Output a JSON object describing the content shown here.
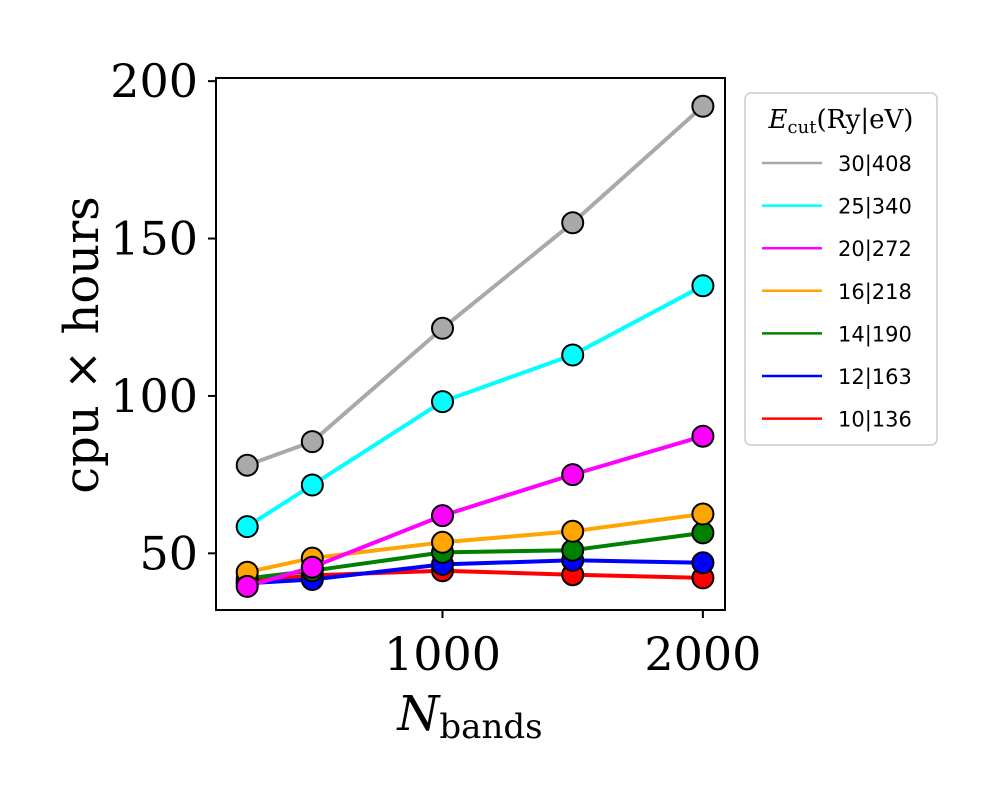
{
  "chart_data": {
    "type": "line",
    "xlabel_main": "N",
    "xlabel_sub": "bands",
    "ylabel": "cpu × hours",
    "xlim": [
      130,
      2085
    ],
    "ylim": [
      32,
      201
    ],
    "x_ticks": [
      1000,
      2000
    ],
    "y_ticks": [
      50,
      100,
      150,
      200
    ],
    "grid": false,
    "legend_placement": "outside-right-top",
    "legend_title_main": "E",
    "legend_title_sub": "cut",
    "legend_title_suffix": "(Ry|eV)",
    "x": [
      250,
      500,
      1000,
      1500,
      2000
    ],
    "series": [
      {
        "name": "30|408",
        "color": "#a9a9a9",
        "values": [
          78,
          85.5,
          121.5,
          155,
          192
        ]
      },
      {
        "name": "25|340",
        "color": "#00ffff",
        "values": [
          58.5,
          71.7,
          98.2,
          113,
          135
        ]
      },
      {
        "name": "20|272",
        "color": "#ff00ff",
        "values": [
          39.5,
          45.6,
          62,
          75,
          87.2
        ]
      },
      {
        "name": "16|218",
        "color": "#ffa500",
        "values": [
          44,
          48.5,
          53.5,
          57,
          62.5
        ]
      },
      {
        "name": "14|190",
        "color": "#008000",
        "values": [
          42,
          44.5,
          50.3,
          51,
          56.5
        ]
      },
      {
        "name": "12|163",
        "color": "#0000ff",
        "values": [
          40.5,
          41.7,
          46.5,
          47.8,
          47
        ]
      },
      {
        "name": "10|136",
        "color": "#ff0000",
        "values": [
          41,
          43,
          44.5,
          43.2,
          42.2
        ]
      }
    ]
  }
}
